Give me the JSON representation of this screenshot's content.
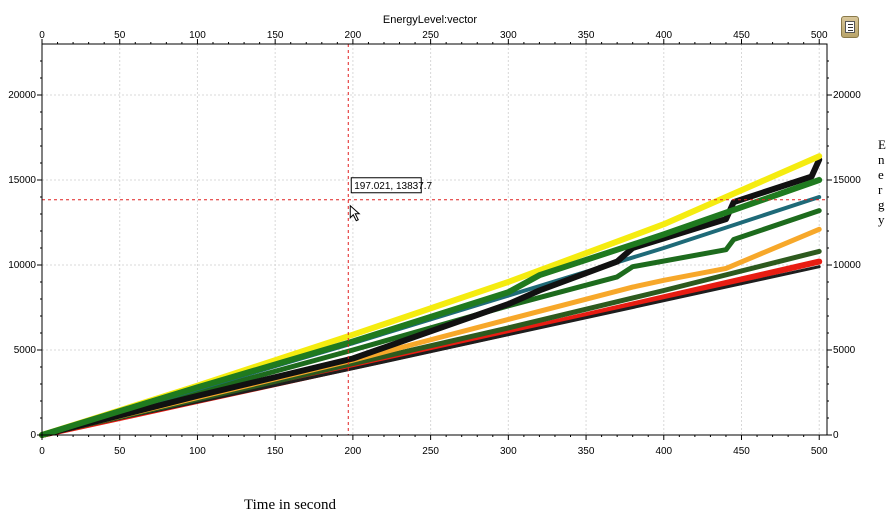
{
  "chart_data": {
    "type": "line",
    "title": "EnergyLevel:vector",
    "xlabel": "Time in second",
    "ylabel": "Energy",
    "xlim": [
      0,
      505
    ],
    "ylim": [
      0,
      23000
    ],
    "x_ticks": [
      0,
      50,
      100,
      150,
      200,
      250,
      300,
      350,
      400,
      450,
      500
    ],
    "y_ticks": [
      0,
      5000,
      10000,
      15000,
      20000
    ],
    "grid": true,
    "crosshair": {
      "x": 197.021,
      "y": 13837.7,
      "label": "197.021, 13837.7"
    },
    "series": [
      {
        "color": "#e81c12",
        "width": 6,
        "x": [
          0,
          100,
          200,
          300,
          400,
          500
        ],
        "y": [
          0,
          2000,
          4000,
          6000,
          8100,
          10200
        ]
      },
      {
        "color": "#1e1e1e",
        "width": 3,
        "x": [
          0,
          100,
          200,
          300,
          400,
          500
        ],
        "y": [
          0,
          1950,
          3900,
          5900,
          7900,
          9900
        ]
      },
      {
        "color": "#2d5a1e",
        "width": 5,
        "x": [
          0,
          100,
          200,
          300,
          400,
          500
        ],
        "y": [
          0,
          2100,
          4200,
          6300,
          8500,
          10800
        ]
      },
      {
        "color": "#f7a82a",
        "width": 5,
        "x": [
          0,
          100,
          200,
          300,
          380,
          400,
          440,
          500
        ],
        "y": [
          0,
          2200,
          4400,
          6800,
          8700,
          9100,
          9800,
          12100
        ]
      },
      {
        "color": "#1d6b1d",
        "width": 5,
        "x": [
          0,
          100,
          200,
          300,
          370,
          380,
          440,
          445,
          500
        ],
        "y": [
          0,
          2500,
          5000,
          7600,
          9300,
          9900,
          10900,
          11500,
          13200
        ]
      },
      {
        "color": "#1e6a78",
        "width": 4,
        "x": [
          0,
          100,
          200,
          300,
          400,
          500
        ],
        "y": [
          0,
          2700,
          5400,
          8200,
          11000,
          14000
        ]
      },
      {
        "color": "#111111",
        "width": 6,
        "x": [
          0,
          100,
          200,
          300,
          320,
          370,
          380,
          440,
          445,
          495,
          500
        ],
        "y": [
          0,
          2300,
          4500,
          7700,
          8500,
          10200,
          11000,
          12700,
          13700,
          15200,
          16200
        ]
      },
      {
        "color": "#f5ec10",
        "width": 6,
        "x": [
          0,
          100,
          200,
          300,
          400,
          500
        ],
        "y": [
          0,
          2900,
          5900,
          9000,
          12400,
          16400
        ]
      },
      {
        "color": "#1f7a1f",
        "width": 6,
        "x": [
          0,
          100,
          200,
          300,
          320,
          400,
          500
        ],
        "y": [
          0,
          2800,
          5500,
          8400,
          9400,
          11800,
          15000
        ]
      }
    ]
  },
  "menu_icon": "list-menu-icon",
  "y_caption_letters": [
    "E",
    "n",
    "e",
    "r",
    "g",
    "y"
  ]
}
